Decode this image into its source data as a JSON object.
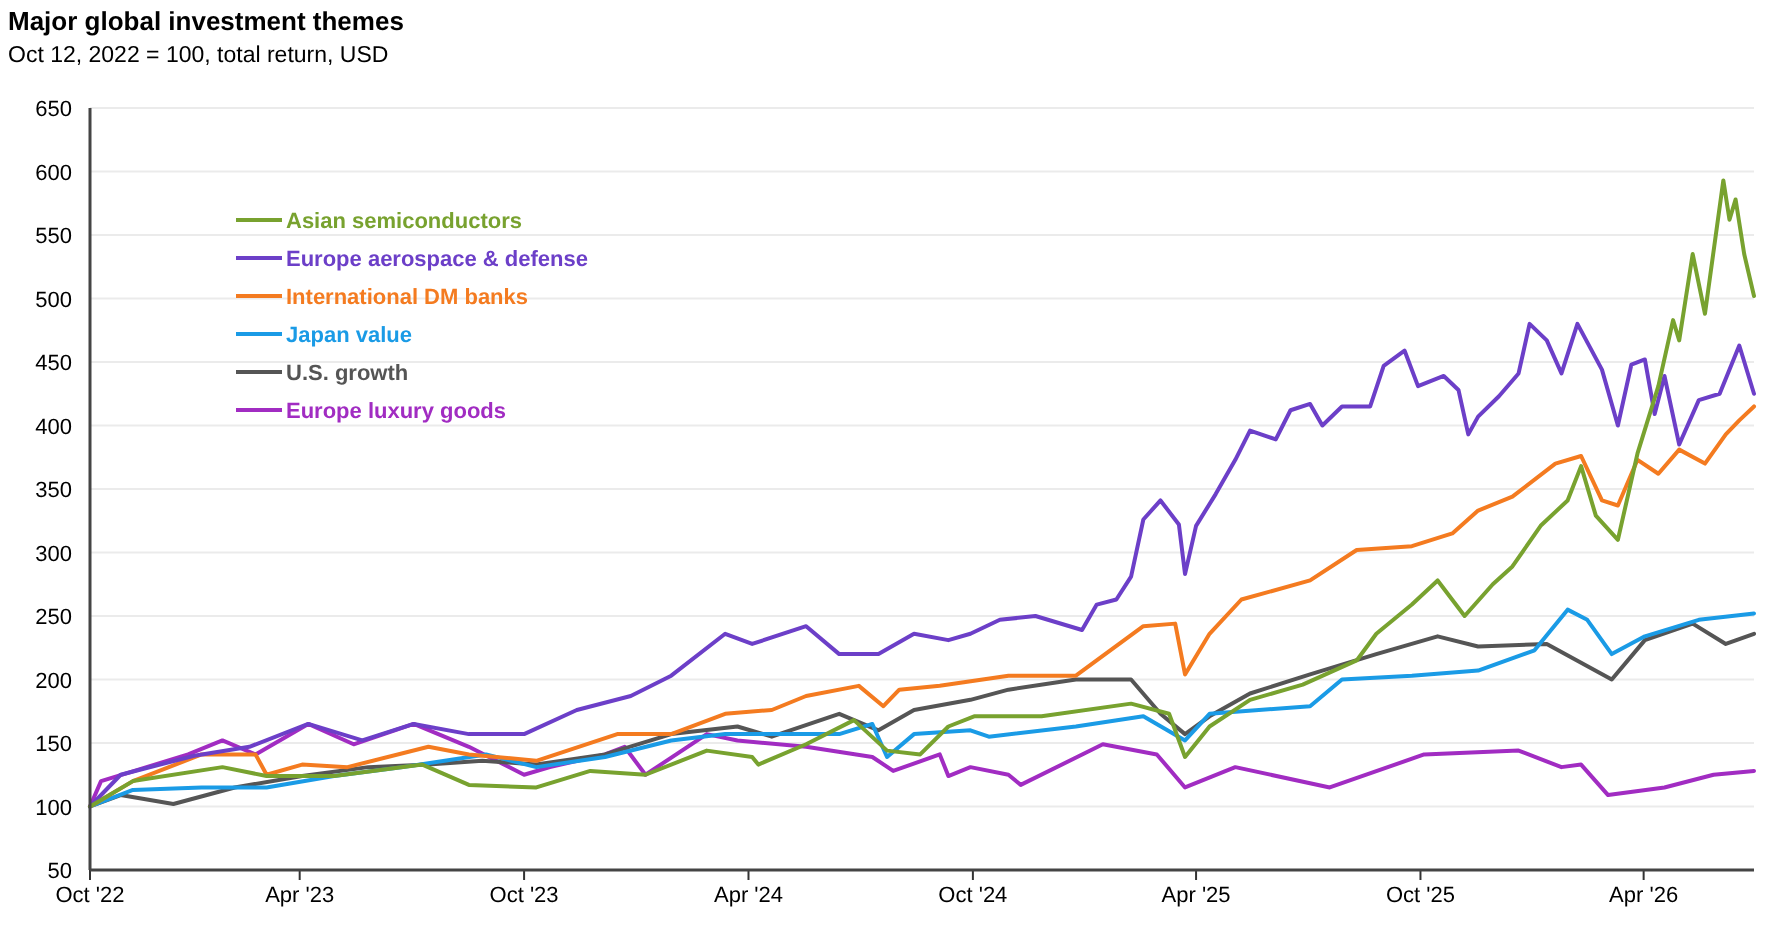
{
  "chart_data": {
    "type": "line",
    "title": "Major global investment themes",
    "subtitle": "Oct 12, 2022 = 100, total return, USD",
    "xlim": [
      "2022-10-12",
      "2026-06-30"
    ],
    "xticks": [
      {
        "value": "2022-10-12",
        "label": "Oct '22"
      },
      {
        "value": "2023-04-01",
        "label": "Apr '23"
      },
      {
        "value": "2023-10-01",
        "label": "Oct '23"
      },
      {
        "value": "2024-04-01",
        "label": "Apr '24"
      },
      {
        "value": "2024-10-01",
        "label": "Oct '24"
      },
      {
        "value": "2025-04-01",
        "label": "Apr '25"
      },
      {
        "value": "2025-10-01",
        "label": "Oct '25"
      },
      {
        "value": "2026-04-01",
        "label": "Apr '26"
      }
    ],
    "ylim": [
      50,
      650
    ],
    "yticks": [
      50,
      100,
      150,
      200,
      250,
      300,
      350,
      400,
      450,
      500,
      550,
      600,
      650
    ],
    "grid": "y",
    "legend": "top left",
    "marker": "none",
    "line_style": "solid",
    "series": [
      {
        "name": "Asian semiconductors",
        "color": "#78a22f",
        "x": [
          "2022-10-12",
          "2022-11-16",
          "2023-01-28",
          "2023-03-05",
          "2023-04-29",
          "2023-07-10",
          "2023-08-17",
          "2023-10-11",
          "2023-11-24",
          "2024-01-08",
          "2024-02-27",
          "2024-04-04",
          "2024-04-09",
          "2024-05-18",
          "2024-06-26",
          "2024-07-23",
          "2024-08-19",
          "2024-09-11",
          "2024-10-02",
          "2024-11-26",
          "2025-02-07",
          "2025-03-10",
          "2025-03-23",
          "2025-04-12",
          "2025-05-15",
          "2025-06-27",
          "2025-08-10",
          "2025-08-26",
          "2025-09-24",
          "2025-10-15",
          "2025-11-06",
          "2025-11-29",
          "2025-12-15",
          "2026-01-07",
          "2026-01-29",
          "2026-02-09",
          "2026-02-21",
          "2026-03-11",
          "2026-03-27",
          "2026-04-13",
          "2026-04-25",
          "2026-04-30",
          "2026-05-11",
          "2026-05-21",
          "2026-06-05",
          "2026-06-10",
          "2026-06-15",
          "2026-06-22",
          "2026-06-30"
        ],
        "values": [
          100,
          120,
          131,
          124,
          124,
          133,
          117,
          115,
          128,
          125,
          144,
          139,
          133,
          149,
          168,
          144,
          141,
          163,
          171,
          171,
          181,
          173,
          139,
          163,
          184,
          196,
          215,
          236,
          259,
          278,
          250,
          275,
          289,
          321,
          341,
          368,
          329,
          310,
          378,
          431,
          483,
          467,
          535,
          488,
          593,
          562,
          578,
          535,
          502
        ]
      },
      {
        "name": "Europe aerospace & defense",
        "color": "#6c3fc8",
        "x": [
          "2022-10-12",
          "2022-11-06",
          "2023-01-05",
          "2023-02-19",
          "2023-04-08",
          "2023-05-22",
          "2023-07-03",
          "2023-08-17",
          "2023-10-01",
          "2023-11-13",
          "2023-12-27",
          "2024-01-29",
          "2024-03-13",
          "2024-04-04",
          "2024-05-18",
          "2024-06-14",
          "2024-07-16",
          "2024-08-14",
          "2024-09-11",
          "2024-09-29",
          "2024-10-23",
          "2024-11-21",
          "2024-12-29",
          "2025-01-10",
          "2025-01-26",
          "2025-02-07",
          "2025-02-17",
          "2025-03-03",
          "2025-03-18",
          "2025-03-23",
          "2025-04-01",
          "2025-04-17",
          "2025-05-03",
          "2025-05-15",
          "2025-06-05",
          "2025-06-17",
          "2025-07-03",
          "2025-07-13",
          "2025-07-29",
          "2025-08-21",
          "2025-09-01",
          "2025-09-18",
          "2025-09-29",
          "2025-10-20",
          "2025-11-01",
          "2025-11-09",
          "2025-11-17",
          "2025-12-04",
          "2025-12-20",
          "2025-12-29",
          "2026-01-12",
          "2026-01-24",
          "2026-02-06",
          "2026-02-26",
          "2026-03-11",
          "2026-03-22",
          "2026-04-02",
          "2026-04-10",
          "2026-04-18",
          "2026-04-30",
          "2026-05-16",
          "2026-06-02",
          "2026-06-18",
          "2026-06-30"
        ],
        "values": [
          100,
          125,
          140,
          147,
          165,
          152,
          165,
          157,
          157,
          176,
          187,
          203,
          236,
          228,
          242,
          220,
          220,
          236,
          231,
          236,
          247,
          250,
          239,
          259,
          263,
          281,
          326,
          341,
          322,
          283,
          321,
          346,
          373,
          396,
          389,
          412,
          417,
          400,
          415,
          415,
          447,
          459,
          431,
          439,
          428,
          393,
          407,
          423,
          441,
          480,
          467,
          441,
          480,
          444,
          400,
          448,
          452,
          409,
          439,
          385,
          420,
          425,
          463,
          425
        ]
      },
      {
        "name": "International DM banks",
        "color": "#f47b20",
        "x": [
          "2022-10-12",
          "2022-11-16",
          "2023-01-11",
          "2023-02-24",
          "2023-03-05",
          "2023-04-03",
          "2023-05-10",
          "2023-07-15",
          "2023-08-17",
          "2023-10-11",
          "2023-12-16",
          "2024-01-29",
          "2024-03-13",
          "2024-04-20",
          "2024-05-18",
          "2024-06-30",
          "2024-07-20",
          "2024-08-02",
          "2024-09-04",
          "2024-10-30",
          "2024-12-24",
          "2025-02-17",
          "2025-03-15",
          "2025-03-23",
          "2025-04-12",
          "2025-05-08",
          "2025-07-03",
          "2025-08-10",
          "2025-09-24",
          "2025-10-27",
          "2025-11-17",
          "2025-12-15",
          "2026-01-19",
          "2026-02-09",
          "2026-02-26",
          "2026-03-11",
          "2026-03-27",
          "2026-04-13",
          "2026-04-30",
          "2026-05-21",
          "2026-06-07",
          "2026-06-18",
          "2026-06-30"
        ],
        "values": [
          100,
          120,
          141,
          141,
          125,
          133,
          131,
          147,
          141,
          136,
          157,
          157,
          173,
          176,
          187,
          195,
          179,
          192,
          195,
          203,
          203,
          242,
          244,
          204,
          236,
          263,
          278,
          302,
          305,
          315,
          333,
          344,
          370,
          376,
          341,
          337,
          373,
          362,
          381,
          370,
          393,
          404,
          415
        ]
      },
      {
        "name": "Japan value",
        "color": "#1a9be6",
        "x": [
          "2022-10-12",
          "2022-11-16",
          "2023-01-11",
          "2023-03-05",
          "2023-04-29",
          "2023-06-24",
          "2023-08-31",
          "2023-10-11",
          "2023-12-06",
          "2024-01-29",
          "2024-03-13",
          "2024-04-20",
          "2024-06-14",
          "2024-07-11",
          "2024-07-23",
          "2024-08-14",
          "2024-09-29",
          "2024-10-14",
          "2024-12-24",
          "2025-02-17",
          "2025-03-23",
          "2025-04-12",
          "2025-07-03",
          "2025-07-29",
          "2025-09-24",
          "2025-11-17",
          "2026-01-02",
          "2026-01-29",
          "2026-02-14",
          "2026-03-06",
          "2026-04-02",
          "2026-05-16",
          "2026-06-30"
        ],
        "values": [
          100,
          113,
          115,
          115,
          124,
          131,
          141,
          131,
          139,
          152,
          157,
          157,
          157,
          165,
          139,
          157,
          160,
          155,
          163,
          171,
          152,
          173,
          179,
          200,
          203,
          207,
          223,
          255,
          247,
          220,
          234,
          247,
          252
        ]
      },
      {
        "name": "U.S. growth",
        "color": "#555555",
        "x": [
          "2022-10-12",
          "2022-11-06",
          "2022-12-19",
          "2023-02-07",
          "2023-04-03",
          "2023-05-27",
          "2023-07-15",
          "2023-08-28",
          "2023-10-11",
          "2023-12-06",
          "2024-01-29",
          "2024-03-23",
          "2024-04-20",
          "2024-06-14",
          "2024-07-16",
          "2024-08-14",
          "2024-09-29",
          "2024-10-30",
          "2024-12-24",
          "2025-02-07",
          "2025-03-03",
          "2025-03-23",
          "2025-04-12",
          "2025-05-15",
          "2025-07-03",
          "2025-08-26",
          "2025-10-15",
          "2025-11-17",
          "2026-01-12",
          "2026-03-06",
          "2026-04-02",
          "2026-05-11",
          "2026-06-07",
          "2026-06-30"
        ],
        "values": [
          100,
          109,
          102,
          115,
          124,
          131,
          133,
          136,
          133,
          141,
          157,
          163,
          155,
          173,
          160,
          176,
          184,
          192,
          200,
          200,
          173,
          157,
          171,
          189,
          204,
          220,
          234,
          226,
          228,
          200,
          231,
          244,
          228,
          236
        ]
      },
      {
        "name": "Europe luxury goods",
        "color": "#a12cc2",
        "x": [
          "2022-10-12",
          "2022-10-21",
          "2022-12-31",
          "2023-01-28",
          "2023-02-24",
          "2023-04-08",
          "2023-05-15",
          "2023-07-03",
          "2023-08-17",
          "2023-10-01",
          "2023-10-22",
          "2023-12-06",
          "2023-12-22",
          "2024-01-08",
          "2024-02-27",
          "2024-03-23",
          "2024-05-18",
          "2024-07-11",
          "2024-07-28",
          "2024-09-04",
          "2024-09-11",
          "2024-09-29",
          "2024-10-30",
          "2024-11-09",
          "2025-01-15",
          "2025-02-28",
          "2025-03-23",
          "2025-05-03",
          "2025-07-19",
          "2025-10-04",
          "2025-12-20",
          "2026-01-24",
          "2026-02-09",
          "2026-03-03",
          "2026-04-18",
          "2026-05-28",
          "2026-06-30"
        ],
        "values": [
          100,
          120,
          141,
          152,
          141,
          165,
          149,
          165,
          147,
          125,
          131,
          141,
          147,
          125,
          157,
          152,
          147,
          139,
          128,
          141,
          124,
          131,
          125,
          117,
          149,
          141,
          115,
          131,
          115,
          141,
          144,
          131,
          133,
          109,
          115,
          125,
          128
        ]
      }
    ]
  }
}
